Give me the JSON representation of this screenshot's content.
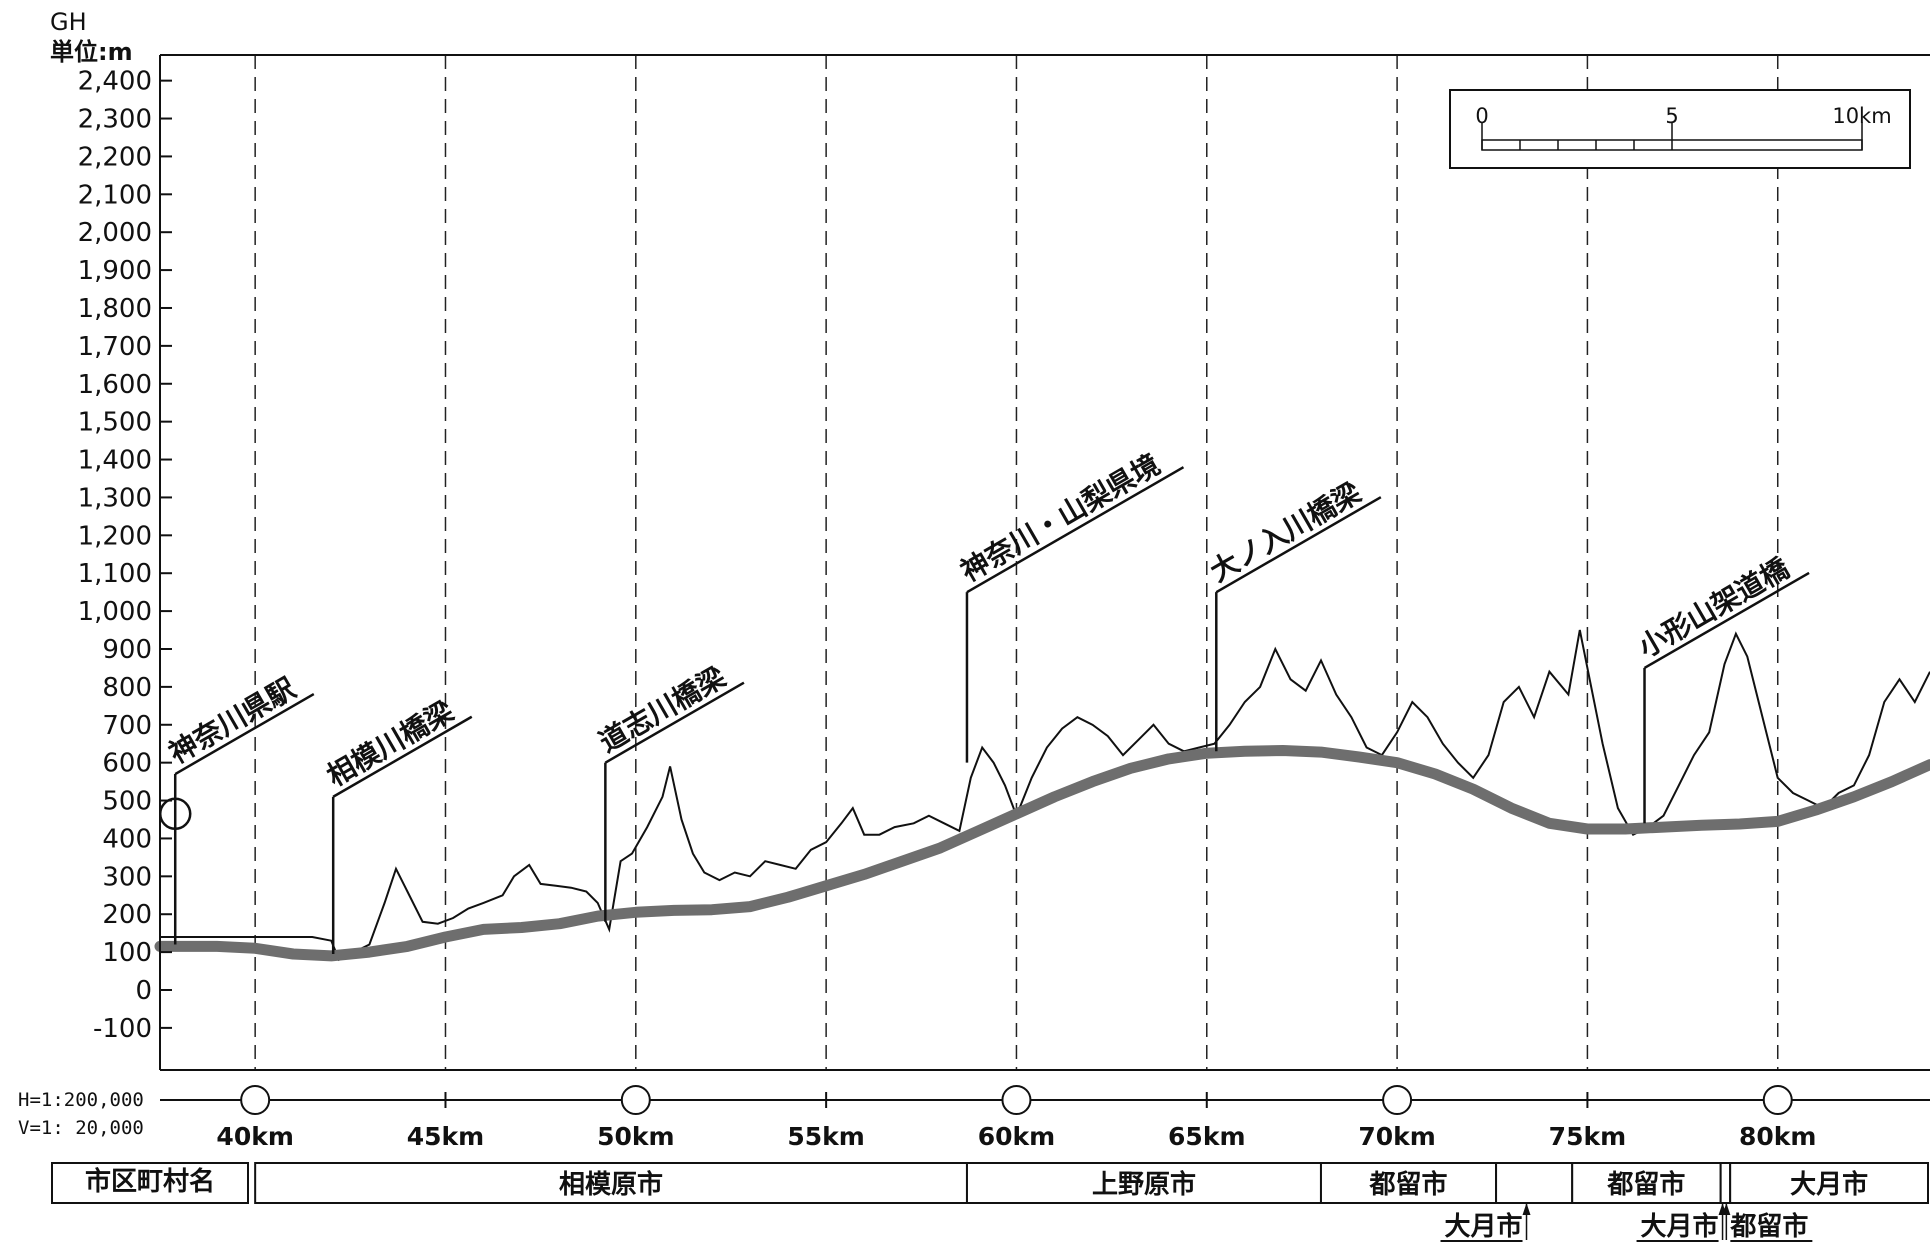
{
  "chart_data": {
    "type": "line",
    "y_unit_top": "GH",
    "y_unit": "単位:m",
    "ylim": [
      -150,
      2500
    ],
    "y_ticks": [
      "-100",
      "0",
      "100",
      "200",
      "300",
      "400",
      "500",
      "600",
      "700",
      "800",
      "900",
      "1,000",
      "1,100",
      "1,200",
      "1,300",
      "1,400",
      "1,500",
      "1,600",
      "1,700",
      "1,800",
      "1,900",
      "2,000",
      "2,100",
      "2,200",
      "2,300",
      "2,400"
    ],
    "y_tick_values": [
      -100,
      0,
      100,
      200,
      300,
      400,
      500,
      600,
      700,
      800,
      900,
      1000,
      1100,
      1200,
      1300,
      1400,
      1500,
      1600,
      1700,
      1800,
      1900,
      2000,
      2100,
      2200,
      2300,
      2400
    ],
    "xlim": [
      37.5,
      84.0
    ],
    "x_ticks": [
      "40km",
      "45km",
      "50km",
      "55km",
      "60km",
      "65km",
      "70km",
      "75km",
      "80km"
    ],
    "x_tick_values": [
      40,
      45,
      50,
      55,
      60,
      65,
      70,
      75,
      80
    ],
    "grid": "vertical dashed at each 5km",
    "scale_note_h": "H=1:200,000",
    "scale_note_v": "V=1: 20,000",
    "scalebar": {
      "labels": [
        "0",
        "5",
        "10km"
      ]
    },
    "series": [
      {
        "role": "ground",
        "color": "#111111",
        "points": [
          [
            37.5,
            140
          ],
          [
            39.0,
            140
          ],
          [
            40.0,
            140
          ],
          [
            41.5,
            140
          ],
          [
            42.0,
            130
          ],
          [
            42.2,
            80
          ],
          [
            42.5,
            95
          ],
          [
            43.0,
            120
          ],
          [
            43.4,
            230
          ],
          [
            43.7,
            320
          ],
          [
            44.0,
            260
          ],
          [
            44.4,
            180
          ],
          [
            44.8,
            175
          ],
          [
            45.2,
            190
          ],
          [
            45.6,
            215
          ],
          [
            46.0,
            230
          ],
          [
            46.5,
            250
          ],
          [
            46.8,
            300
          ],
          [
            47.2,
            330
          ],
          [
            47.5,
            280
          ],
          [
            47.9,
            275
          ],
          [
            48.3,
            270
          ],
          [
            48.7,
            260
          ],
          [
            49.0,
            230
          ],
          [
            49.3,
            160
          ],
          [
            49.6,
            340
          ],
          [
            49.9,
            360
          ],
          [
            50.3,
            430
          ],
          [
            50.7,
            510
          ],
          [
            50.9,
            590
          ],
          [
            51.2,
            450
          ],
          [
            51.5,
            360
          ],
          [
            51.8,
            310
          ],
          [
            52.2,
            290
          ],
          [
            52.6,
            310
          ],
          [
            53.0,
            300
          ],
          [
            53.4,
            340
          ],
          [
            53.8,
            330
          ],
          [
            54.2,
            320
          ],
          [
            54.6,
            370
          ],
          [
            55.0,
            390
          ],
          [
            55.4,
            440
          ],
          [
            55.7,
            480
          ],
          [
            56.0,
            410
          ],
          [
            56.4,
            410
          ],
          [
            56.8,
            430
          ],
          [
            57.3,
            440
          ],
          [
            57.7,
            460
          ],
          [
            58.1,
            440
          ],
          [
            58.5,
            420
          ],
          [
            58.8,
            560
          ],
          [
            59.1,
            640
          ],
          [
            59.4,
            600
          ],
          [
            59.7,
            540
          ],
          [
            60.0,
            460
          ],
          [
            60.4,
            560
          ],
          [
            60.8,
            640
          ],
          [
            61.2,
            690
          ],
          [
            61.6,
            720
          ],
          [
            62.0,
            700
          ],
          [
            62.4,
            670
          ],
          [
            62.8,
            620
          ],
          [
            63.2,
            660
          ],
          [
            63.6,
            700
          ],
          [
            64.0,
            650
          ],
          [
            64.4,
            630
          ],
          [
            64.8,
            640
          ],
          [
            65.2,
            650
          ],
          [
            65.6,
            700
          ],
          [
            66.0,
            760
          ],
          [
            66.4,
            800
          ],
          [
            66.8,
            900
          ],
          [
            67.2,
            820
          ],
          [
            67.6,
            790
          ],
          [
            68.0,
            870
          ],
          [
            68.4,
            780
          ],
          [
            68.8,
            720
          ],
          [
            69.2,
            640
          ],
          [
            69.6,
            620
          ],
          [
            70.0,
            680
          ],
          [
            70.4,
            760
          ],
          [
            70.8,
            720
          ],
          [
            71.2,
            650
          ],
          [
            71.6,
            600
          ],
          [
            72.0,
            560
          ],
          [
            72.4,
            620
          ],
          [
            72.8,
            760
          ],
          [
            73.2,
            800
          ],
          [
            73.6,
            720
          ],
          [
            74.0,
            840
          ],
          [
            74.5,
            780
          ],
          [
            74.8,
            950
          ],
          [
            75.1,
            800
          ],
          [
            75.4,
            650
          ],
          [
            75.8,
            480
          ],
          [
            76.2,
            410
          ],
          [
            76.6,
            430
          ],
          [
            77.0,
            460
          ],
          [
            77.4,
            540
          ],
          [
            77.8,
            620
          ],
          [
            78.2,
            680
          ],
          [
            78.6,
            860
          ],
          [
            78.9,
            940
          ],
          [
            79.2,
            880
          ],
          [
            79.6,
            720
          ],
          [
            80.0,
            560
          ],
          [
            80.4,
            520
          ],
          [
            80.8,
            500
          ],
          [
            81.2,
            480
          ],
          [
            81.6,
            520
          ],
          [
            82.0,
            540
          ],
          [
            82.4,
            620
          ],
          [
            82.8,
            760
          ],
          [
            83.2,
            820
          ],
          [
            83.6,
            760
          ],
          [
            84.0,
            840
          ]
        ]
      },
      {
        "role": "track",
        "color": "#6e6e6e",
        "points": [
          [
            37.5,
            115
          ],
          [
            39.0,
            115
          ],
          [
            40.0,
            110
          ],
          [
            41.0,
            95
          ],
          [
            42.0,
            90
          ],
          [
            43.0,
            100
          ],
          [
            44.0,
            115
          ],
          [
            45.0,
            140
          ],
          [
            46.0,
            160
          ],
          [
            47.0,
            165
          ],
          [
            48.0,
            175
          ],
          [
            49.0,
            195
          ],
          [
            50.0,
            205
          ],
          [
            51.0,
            210
          ],
          [
            52.0,
            212
          ],
          [
            53.0,
            220
          ],
          [
            54.0,
            245
          ],
          [
            55.0,
            275
          ],
          [
            56.0,
            305
          ],
          [
            57.0,
            340
          ],
          [
            58.0,
            375
          ],
          [
            59.0,
            420
          ],
          [
            60.0,
            465
          ],
          [
            61.0,
            510
          ],
          [
            62.0,
            550
          ],
          [
            63.0,
            585
          ],
          [
            64.0,
            610
          ],
          [
            65.0,
            625
          ],
          [
            66.0,
            630
          ],
          [
            67.0,
            632
          ],
          [
            68.0,
            628
          ],
          [
            69.0,
            615
          ],
          [
            70.0,
            600
          ],
          [
            71.0,
            570
          ],
          [
            72.0,
            530
          ],
          [
            73.0,
            480
          ],
          [
            74.0,
            440
          ],
          [
            75.0,
            425
          ],
          [
            76.0,
            425
          ],
          [
            77.0,
            430
          ],
          [
            78.0,
            435
          ],
          [
            79.0,
            438
          ],
          [
            80.0,
            445
          ],
          [
            81.0,
            475
          ],
          [
            82.0,
            510
          ],
          [
            83.0,
            550
          ],
          [
            84.0,
            595
          ]
        ]
      }
    ],
    "annotations": [
      {
        "label": "神奈川県駅",
        "x": 37.9,
        "elev": 120,
        "top": 570,
        "circle": true
      },
      {
        "label": "相模川橋梁",
        "x": 42.05,
        "elev": 95,
        "top": 510
      },
      {
        "label": "道志川橋梁",
        "x": 49.2,
        "elev": 180,
        "top": 600
      },
      {
        "label": "神奈川・山梨県境",
        "x": 58.7,
        "elev": 600,
        "top": 1050
      },
      {
        "label": "大ノ入川橋梁",
        "x": 65.25,
        "elev": 630,
        "top": 1050
      },
      {
        "label": "小形山架道橋",
        "x": 76.5,
        "elev": 440,
        "top": 850
      }
    ],
    "km_markers": [
      40,
      50,
      60,
      70,
      80
    ]
  },
  "municipalities": {
    "header": "市区町村名",
    "boxes": [
      {
        "label": "相模原市",
        "from": 40.0,
        "to": 58.7
      },
      {
        "label": "上野原市",
        "from": 58.7,
        "to": 68.0
      },
      {
        "label": "都留市",
        "from": 68.0,
        "to": 72.6
      },
      {
        "label": "",
        "from": 72.6,
        "to": 74.6
      },
      {
        "label": "都留市",
        "from": 74.6,
        "to": 78.5
      },
      {
        "label": "",
        "from": 78.5,
        "to": 78.75
      },
      {
        "label": "大月市",
        "from": 78.75,
        "to": 84.0
      }
    ],
    "callouts": [
      {
        "label": "大月市",
        "x": 73.4,
        "side": "left"
      },
      {
        "label": "大月市",
        "x": 78.55,
        "side": "left"
      },
      {
        "label": "都留市",
        "x": 78.65,
        "side": "right"
      }
    ]
  }
}
